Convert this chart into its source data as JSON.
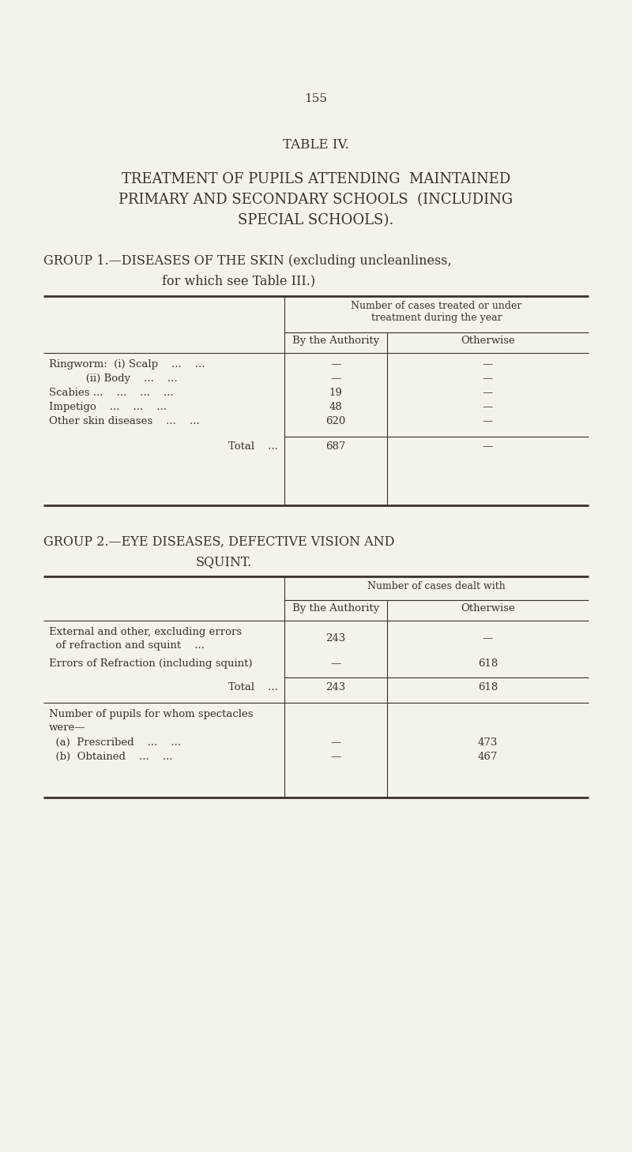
{
  "page_number": "155",
  "title_line1": "TABLE IV.",
  "title_line2": "TREATMENT OF PUPILS ATTENDING  MAINTAINED",
  "title_line3": "PRIMARY AND SECONDARY SCHOOLS  (INCLUDING",
  "title_line4": "SPECIAL SCHOOLS).",
  "bg_color": "#f5f2e8",
  "text_color": "#3a3228",
  "group1_heading": "GROUP 1.—DISEASES OF THE SKIN (excluding uncleanliness,",
  "group1_heading2": "for which see Table III.)",
  "group1_col_header_span": "Number of cases treated or under\ntreatment during the year",
  "group1_col1": "By the Authority",
  "group1_col2": "Otherwise",
  "group1_rows": [
    {
      "label": "Ringworm:  (i) Scalp    ...    ...",
      "col1": "—",
      "col2": "—"
    },
    {
      "label": "           (ii) Body    ...    ...",
      "col1": "—",
      "col2": "—"
    },
    {
      "label": "Scabies ...    ...    ...    ...",
      "col1": "19",
      "col2": "—"
    },
    {
      "label": "Impetigo    ...    ...    ...",
      "col1": "48",
      "col2": "—"
    },
    {
      "label": "Other skin diseases    ...    ...",
      "col1": "620",
      "col2": "—"
    }
  ],
  "group1_total_label": "Total    ...",
  "group1_total_col1": "687",
  "group1_total_col2": "—",
  "group2_heading": "GROUP 2.—EYE DISEASES, DEFECTIVE VISION AND",
  "group2_heading2": "SQUINT.",
  "group2_col_header_span": "Number of cases dealt with",
  "group2_col1": "By the Authority",
  "group2_col2": "Otherwise",
  "group2_rows": [
    {
      "label_line1": "External and other, excluding errors",
      "label_line2": "  of refraction and squint    ...",
      "col1": "243",
      "col2": "—"
    },
    {
      "label_line1": "Errors of Refraction (including squint)",
      "label_line2": "",
      "col1": "—",
      "col2": "618"
    }
  ],
  "group2_total_label": "Total    ...",
  "group2_total_col1": "243",
  "group2_total_col2": "618",
  "group2_spectacles_line1": "Number of pupils for whom spectacles",
  "group2_spectacles_line2": "were—",
  "group2_spectacles_rows": [
    {
      "label": "  (a)  Prescribed    ...    ...",
      "col1": "—",
      "col2": "473"
    },
    {
      "label": "  (b)  Obtained    ...    ...",
      "col1": "—",
      "col2": "467"
    }
  ]
}
